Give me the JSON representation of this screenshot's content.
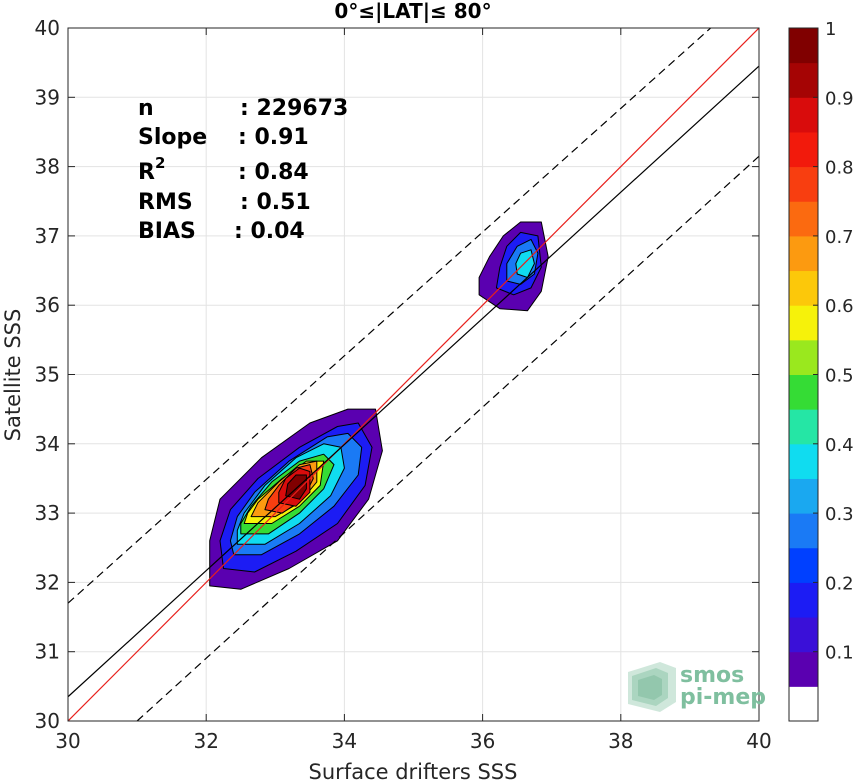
{
  "chart_data": {
    "type": "contour",
    "title": "0°≤|LAT|≤ 80°",
    "xlabel": "Surface drifters SSS",
    "ylabel": "Satellite SSS",
    "xlim": [
      30,
      40
    ],
    "ylim": [
      30,
      40
    ],
    "xticks": [
      "30",
      "32",
      "34",
      "36",
      "38",
      "40"
    ],
    "yticks": [
      "30",
      "31",
      "32",
      "33",
      "34",
      "35",
      "36",
      "37",
      "38",
      "39",
      "40"
    ],
    "grid": true,
    "stats": [
      {
        "label": "n",
        "value": ": 229673"
      },
      {
        "label": "Slope",
        "value": ": 0.91"
      },
      {
        "label": "R",
        "sup": "2",
        "value": ": 0.84"
      },
      {
        "label": "RMS",
        "value": ": 0.51"
      },
      {
        "label": "BIAS",
        "value": ": 0.04"
      }
    ],
    "regression": {
      "slope": 0.91,
      "bias": 0.04,
      "rms": 0.51,
      "n": 229673,
      "r2": 0.84
    },
    "lines": {
      "identity": {
        "x": [
          30,
          40
        ],
        "y": [
          30,
          40
        ],
        "color": "#e8201c"
      },
      "fit": {
        "x": [
          30,
          40
        ],
        "y": [
          30.35,
          39.45
        ],
        "color": "#000000"
      },
      "upper": {
        "x": [
          30,
          39.3
        ],
        "y": [
          31.7,
          40
        ],
        "color": "#000000",
        "dash": true
      },
      "lower": {
        "x": [
          31,
          40
        ],
        "y": [
          30,
          38.15
        ],
        "color": "#000000",
        "dash": true
      }
    },
    "clusters": [
      {
        "name": "main",
        "center": [
          33.3,
          33.3
        ],
        "levels": [
          0.05,
          0.15,
          0.25,
          0.35,
          0.45,
          0.55,
          0.65,
          0.75,
          0.85,
          0.95
        ],
        "rings": [
          [
            [
              32.05,
              31.95
            ],
            [
              32.5,
              31.9
            ],
            [
              33.2,
              32.2
            ],
            [
              33.9,
              32.6
            ],
            [
              34.35,
              33.2
            ],
            [
              34.55,
              33.9
            ],
            [
              34.45,
              34.5
            ],
            [
              34.05,
              34.5
            ],
            [
              33.5,
              34.3
            ],
            [
              32.8,
              33.8
            ],
            [
              32.2,
              33.2
            ],
            [
              32.05,
              32.6
            ]
          ],
          [
            [
              32.25,
              32.2
            ],
            [
              32.7,
              32.15
            ],
            [
              33.3,
              32.45
            ],
            [
              33.9,
              32.85
            ],
            [
              34.3,
              33.4
            ],
            [
              34.4,
              33.95
            ],
            [
              34.2,
              34.3
            ],
            [
              33.9,
              34.25
            ],
            [
              33.35,
              33.95
            ],
            [
              32.75,
              33.5
            ],
            [
              32.35,
              33.05
            ],
            [
              32.2,
              32.6
            ]
          ],
          [
            [
              32.4,
              32.4
            ],
            [
              32.8,
              32.4
            ],
            [
              33.35,
              32.7
            ],
            [
              33.85,
              33.1
            ],
            [
              34.2,
              33.55
            ],
            [
              34.25,
              33.95
            ],
            [
              34.05,
              34.15
            ],
            [
              33.75,
              34.1
            ],
            [
              33.2,
              33.75
            ],
            [
              32.7,
              33.3
            ],
            [
              32.45,
              32.95
            ],
            [
              32.35,
              32.6
            ]
          ],
          [
            [
              32.45,
              32.55
            ],
            [
              32.85,
              32.55
            ],
            [
              33.35,
              32.85
            ],
            [
              33.8,
              33.25
            ],
            [
              34.0,
              33.65
            ],
            [
              33.95,
              33.95
            ],
            [
              33.7,
              34.0
            ],
            [
              33.3,
              33.8
            ],
            [
              32.85,
              33.4
            ],
            [
              32.55,
              33.0
            ],
            [
              32.45,
              32.75
            ]
          ],
          [
            [
              32.5,
              32.7
            ],
            [
              32.9,
              32.7
            ],
            [
              33.35,
              33.0
            ],
            [
              33.7,
              33.35
            ],
            [
              33.85,
              33.7
            ],
            [
              33.7,
              33.85
            ],
            [
              33.35,
              33.75
            ],
            [
              32.95,
              33.45
            ],
            [
              32.65,
              33.1
            ],
            [
              32.5,
              32.85
            ]
          ],
          [
            [
              32.55,
              32.85
            ],
            [
              32.95,
              32.85
            ],
            [
              33.35,
              33.1
            ],
            [
              33.65,
              33.4
            ],
            [
              33.7,
              33.75
            ],
            [
              33.45,
              33.75
            ],
            [
              33.1,
              33.5
            ],
            [
              32.75,
              33.2
            ],
            [
              32.6,
              33.0
            ]
          ],
          [
            [
              32.65,
              32.95
            ],
            [
              33.0,
              32.95
            ],
            [
              33.35,
              33.15
            ],
            [
              33.6,
              33.45
            ],
            [
              33.6,
              33.75
            ],
            [
              33.35,
              33.7
            ],
            [
              33.05,
              33.45
            ],
            [
              32.75,
              33.15
            ]
          ],
          [
            [
              32.85,
              33.05
            ],
            [
              33.1,
              33.0
            ],
            [
              33.4,
              33.2
            ],
            [
              33.55,
              33.5
            ],
            [
              33.5,
              33.7
            ],
            [
              33.3,
              33.65
            ],
            [
              33.05,
              33.4
            ],
            [
              32.9,
              33.2
            ]
          ],
          [
            [
              33.05,
              33.15
            ],
            [
              33.3,
              33.1
            ],
            [
              33.5,
              33.3
            ],
            [
              33.5,
              33.6
            ],
            [
              33.35,
              33.65
            ],
            [
              33.15,
              33.5
            ],
            [
              33.05,
              33.3
            ]
          ],
          [
            [
              33.15,
              33.25
            ],
            [
              33.35,
              33.2
            ],
            [
              33.45,
              33.35
            ],
            [
              33.45,
              33.55
            ],
            [
              33.3,
              33.55
            ],
            [
              33.18,
              33.42
            ]
          ]
        ]
      },
      {
        "name": "secondary",
        "center": [
          36.6,
          36.55
        ],
        "levels": [
          0.05,
          0.15,
          0.25,
          0.35
        ],
        "rings": [
          [
            [
              35.95,
              36.15
            ],
            [
              36.25,
              35.95
            ],
            [
              36.65,
              35.92
            ],
            [
              36.85,
              36.2
            ],
            [
              36.95,
              36.7
            ],
            [
              36.85,
              37.2
            ],
            [
              36.55,
              37.2
            ],
            [
              36.3,
              37.0
            ],
            [
              36.1,
              36.7
            ],
            [
              35.95,
              36.4
            ]
          ],
          [
            [
              36.2,
              36.25
            ],
            [
              36.45,
              36.15
            ],
            [
              36.7,
              36.25
            ],
            [
              36.85,
              36.55
            ],
            [
              36.8,
              37.0
            ],
            [
              36.55,
              37.05
            ],
            [
              36.35,
              36.85
            ],
            [
              36.25,
              36.55
            ]
          ],
          [
            [
              36.35,
              36.35
            ],
            [
              36.55,
              36.3
            ],
            [
              36.75,
              36.45
            ],
            [
              36.8,
              36.75
            ],
            [
              36.7,
              36.95
            ],
            [
              36.5,
              36.85
            ],
            [
              36.35,
              36.6
            ]
          ],
          [
            [
              36.5,
              36.45
            ],
            [
              36.65,
              36.4
            ],
            [
              36.75,
              36.6
            ],
            [
              36.7,
              36.8
            ],
            [
              36.55,
              36.75
            ],
            [
              36.48,
              36.6
            ]
          ]
        ]
      }
    ],
    "colorbar": {
      "ticks": [
        "0.1",
        "0.2",
        "0.3",
        "0.4",
        "0.5",
        "0.6",
        "0.7",
        "0.8",
        "0.9",
        "1"
      ],
      "colors": [
        "#ffffff",
        "#5a00b0",
        "#3a10d8",
        "#1c1cf4",
        "#0040ff",
        "#1a7af5",
        "#1aa8f0",
        "#10dcf0",
        "#25e6a5",
        "#35dc35",
        "#9ae81e",
        "#f6f20a",
        "#fcc80a",
        "#fc9a10",
        "#fb6a10",
        "#f83e10",
        "#f21a0c",
        "#d90c0c",
        "#a50404",
        "#800000"
      ]
    }
  },
  "logo": {
    "line1": "smos",
    "line2": "pi-mep",
    "color": "#7fbf9f"
  }
}
